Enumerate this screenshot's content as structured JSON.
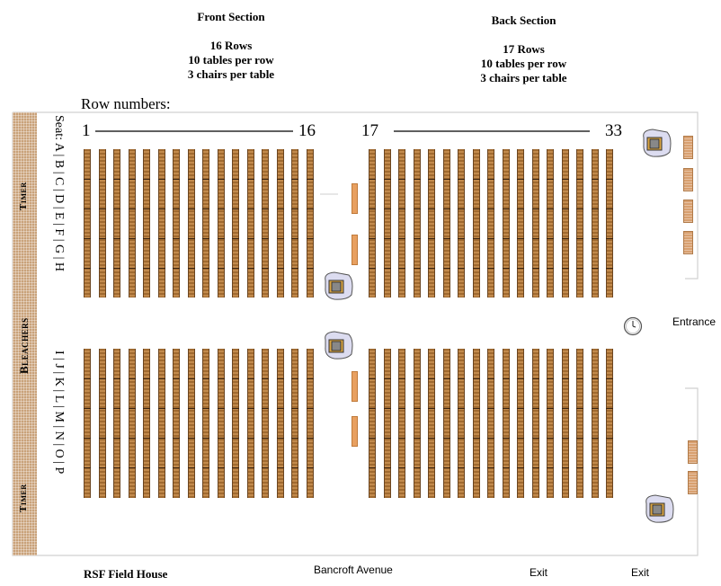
{
  "front_section": {
    "title": "Front Section",
    "rows": "16 Rows",
    "tables": "10 tables per row",
    "chairs": "3 chairs per table"
  },
  "back_section": {
    "title": "Back Section",
    "rows": "17 Rows",
    "tables": "10 tables per row",
    "chairs": "3 chairs per table"
  },
  "row_numbers_label": "Row numbers:",
  "row_markers": {
    "front_start": "1",
    "front_end": "16",
    "back_start": "17",
    "back_end": "33"
  },
  "seat_labels": {
    "upper": "Seat: A | B | C | D | E | F | G | H",
    "lower": "I | J | K | L | M | N | O | P"
  },
  "side_labels": {
    "timer_top": "Timer",
    "bleachers": "Bleachers",
    "timer_bottom": "Timer"
  },
  "bottom_labels": {
    "field_house": "RSF Field House",
    "avenue": "Bancroft Avenue",
    "exit1": "Exit",
    "exit2": "Exit"
  },
  "entrance_label": "Entrance",
  "colors": {
    "table": "#b07a3e",
    "bleachers": "#c9a27a",
    "orange_bar": "#e8a060"
  }
}
